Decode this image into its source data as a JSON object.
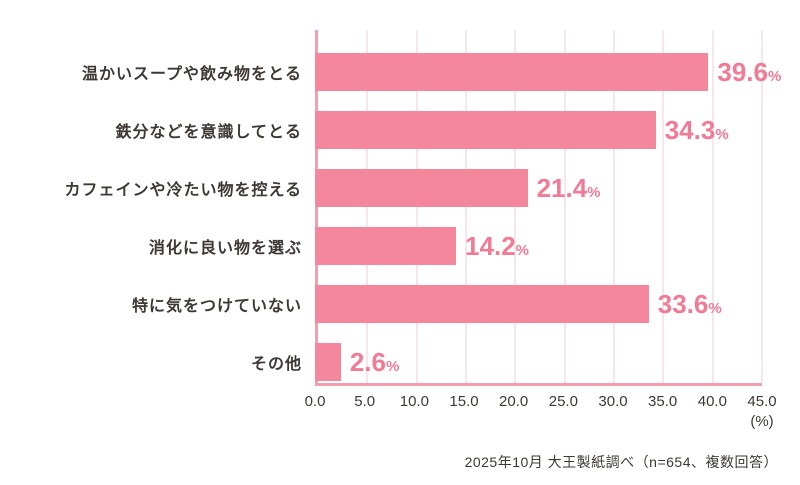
{
  "chart_data": {
    "type": "bar",
    "orientation": "horizontal",
    "categories": [
      "温かいスープや飲み物をとる",
      "鉄分などを意識してとる",
      "カフェインや冷たい物を控える",
      "消化に良い物を選ぶ",
      "特に気をつけていない",
      "その他"
    ],
    "values": [
      39.6,
      34.3,
      21.4,
      14.2,
      33.6,
      2.6
    ],
    "value_suffix": "%",
    "xlim": [
      0,
      45
    ],
    "xticks": [
      "0.0",
      "5.0",
      "10.0",
      "15.0",
      "20.0",
      "25.0",
      "30.0",
      "35.0",
      "40.0",
      "45.0"
    ],
    "grid": true,
    "unit_label": "(%)",
    "legend": "none",
    "colors": {
      "bar": "#f5879d",
      "value_label": "#f27a95",
      "axis": "#f29fb0",
      "gridline": "#f5e7ed",
      "text": "#3e3835"
    }
  },
  "footer": {
    "source_note": "2025年10月 大王製紙調べ（n=654、複数回答）"
  }
}
